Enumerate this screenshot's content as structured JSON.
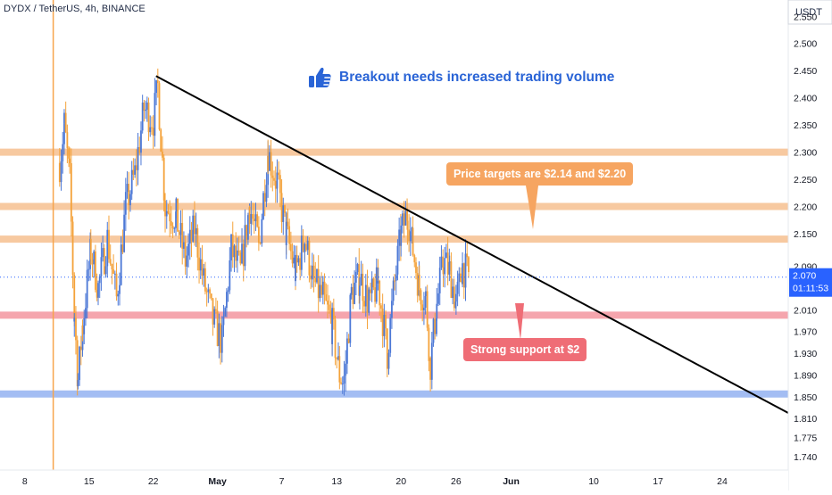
{
  "header": {
    "symbol": "DYDX / TetherUS, 4h, BINANCE"
  },
  "price_axis": {
    "currency": "USDT",
    "ticks": [
      "2.550",
      "2.500",
      "2.450",
      "2.400",
      "2.350",
      "2.300",
      "2.250",
      "2.200",
      "2.150",
      "2.090",
      "2.010",
      "1.970",
      "1.930",
      "1.890",
      "1.850",
      "1.810",
      "1.775",
      "1.740"
    ],
    "last_price": "2.070",
    "countdown": "01:11:53",
    "colors": {
      "last_price_bg": "#2962ff"
    }
  },
  "time_axis": {
    "ticks": [
      "8",
      "15",
      "22",
      "May",
      "7",
      "13",
      "20",
      "26",
      "Jun",
      "10",
      "17",
      "24"
    ]
  },
  "annotations": {
    "headline": "Breakout needs increased trading volume",
    "headline_icon": "thumbs-up-icon",
    "targets_note": "Price targets are $2.14 and $2.20",
    "support_note": "Strong support at $2"
  },
  "chart_data": {
    "type": "candlestick",
    "timeframe": "4h",
    "y_range": [
      1.715,
      2.58
    ],
    "x_ticks": [
      {
        "label": "8",
        "day": 8
      },
      {
        "label": "15",
        "day": 15
      },
      {
        "label": "22",
        "day": 22
      },
      {
        "label": "May",
        "day": 29
      },
      {
        "label": "7",
        "day": 36
      },
      {
        "label": "13",
        "day": 42
      },
      {
        "label": "20",
        "day": 49
      },
      {
        "label": "26",
        "day": 55
      },
      {
        "label": "Jun",
        "day": 61
      },
      {
        "label": "10",
        "day": 70
      },
      {
        "label": "17",
        "day": 77
      },
      {
        "label": "24",
        "day": 84
      }
    ],
    "x_range": [
      5.3,
      91.2
    ],
    "horizontal_levels": [
      {
        "price": 2.3,
        "color": "#f7c9a0"
      },
      {
        "price": 2.2,
        "color": "#f7c9a0"
      },
      {
        "price": 2.14,
        "color": "#f7c9a0"
      },
      {
        "price": 2.0,
        "color": "#f5a5ad"
      },
      {
        "price": 1.855,
        "color": "#a3bdf3"
      }
    ],
    "trendline": {
      "from": {
        "day": 22.3,
        "price": 2.44
      },
      "to": {
        "day": 91.2,
        "price": 1.82
      },
      "color": "#000000"
    },
    "vertical_marker": {
      "day": 11.1,
      "color": "#f6a44c"
    },
    "last_price": 2.07,
    "colors": {
      "up": "#4c78d6",
      "down": "#f4a23a"
    },
    "path": [
      {
        "day": 11.8,
        "price": 2.28
      },
      {
        "day": 12.3,
        "price": 2.35
      },
      {
        "day": 12.9,
        "price": 2.25
      },
      {
        "day": 13.4,
        "price": 2.0
      },
      {
        "day": 13.8,
        "price": 1.88
      },
      {
        "day": 14.3,
        "price": 1.98
      },
      {
        "day": 15.2,
        "price": 2.12
      },
      {
        "day": 16.0,
        "price": 2.05
      },
      {
        "day": 17.0,
        "price": 2.14
      },
      {
        "day": 18.0,
        "price": 2.03
      },
      {
        "day": 19.0,
        "price": 2.2
      },
      {
        "day": 20.0,
        "price": 2.26
      },
      {
        "day": 21.0,
        "price": 2.38
      },
      {
        "day": 22.0,
        "price": 2.36
      },
      {
        "day": 22.5,
        "price": 2.42
      },
      {
        "day": 23.3,
        "price": 2.2
      },
      {
        "day": 24.5,
        "price": 2.18
      },
      {
        "day": 25.5,
        "price": 2.1
      },
      {
        "day": 26.5,
        "price": 2.16
      },
      {
        "day": 27.5,
        "price": 2.06
      },
      {
        "day": 28.5,
        "price": 1.99
      },
      {
        "day": 29.5,
        "price": 1.95
      },
      {
        "day": 30.5,
        "price": 2.12
      },
      {
        "day": 31.5,
        "price": 2.08
      },
      {
        "day": 32.5,
        "price": 2.2
      },
      {
        "day": 33.5,
        "price": 2.13
      },
      {
        "day": 34.5,
        "price": 2.3
      },
      {
        "day": 35.5,
        "price": 2.24
      },
      {
        "day": 36.5,
        "price": 2.15
      },
      {
        "day": 37.5,
        "price": 2.08
      },
      {
        "day": 38.5,
        "price": 2.14
      },
      {
        "day": 39.5,
        "price": 2.06
      },
      {
        "day": 40.5,
        "price": 2.03
      },
      {
        "day": 41.5,
        "price": 1.98
      },
      {
        "day": 42.3,
        "price": 1.89
      },
      {
        "day": 42.8,
        "price": 1.88
      },
      {
        "day": 43.6,
        "price": 2.04
      },
      {
        "day": 44.5,
        "price": 2.07
      },
      {
        "day": 45.5,
        "price": 2.02
      },
      {
        "day": 46.5,
        "price": 2.06
      },
      {
        "day": 47.5,
        "price": 1.93
      },
      {
        "day": 48.3,
        "price": 2.06
      },
      {
        "day": 49.0,
        "price": 2.15
      },
      {
        "day": 49.7,
        "price": 2.19
      },
      {
        "day": 50.3,
        "price": 2.12
      },
      {
        "day": 51.0,
        "price": 2.05
      },
      {
        "day": 51.7,
        "price": 2.03
      },
      {
        "day": 52.2,
        "price": 1.91
      },
      {
        "day": 52.9,
        "price": 2.02
      },
      {
        "day": 53.6,
        "price": 2.1
      },
      {
        "day": 54.3,
        "price": 2.08
      },
      {
        "day": 55.0,
        "price": 2.02
      },
      {
        "day": 55.7,
        "price": 2.09
      },
      {
        "day": 56.4,
        "price": 2.07
      }
    ]
  }
}
